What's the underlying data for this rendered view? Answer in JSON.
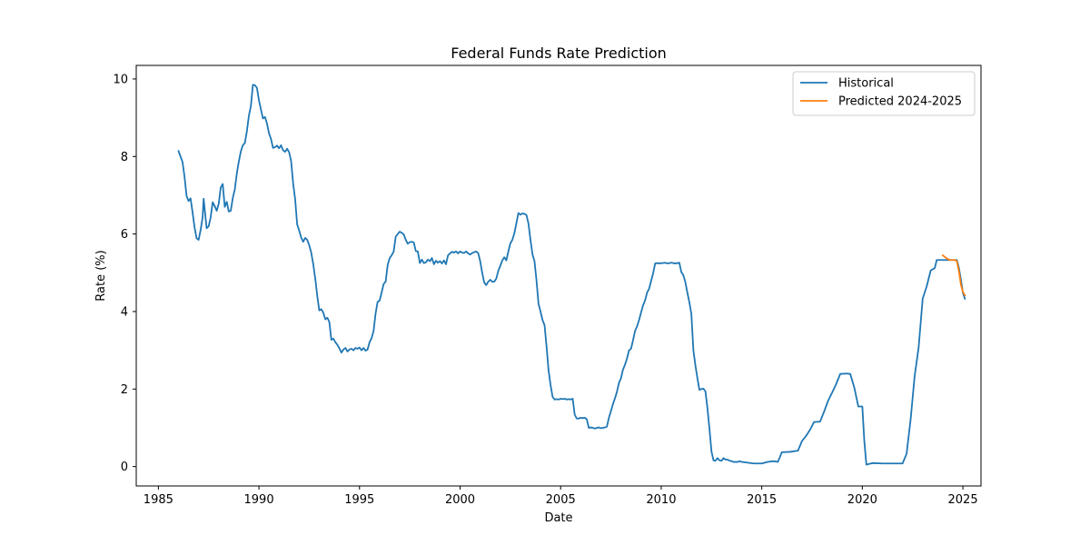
{
  "chart_data": {
    "type": "line",
    "title": "Federal Funds Rate Prediction",
    "xlabel": "Date",
    "ylabel": "Rate (%)",
    "xlim": [
      1983.9,
      2025.9
    ],
    "ylim": [
      -0.5,
      10.35
    ],
    "x_ticks": [
      1985,
      1990,
      1995,
      2000,
      2005,
      2010,
      2015,
      2020,
      2025
    ],
    "y_ticks": [
      0,
      2,
      4,
      6,
      8,
      10
    ],
    "grid": false,
    "legend_position": "top-right",
    "series": [
      {
        "name": "Historical",
        "color": "#1f77b4",
        "points": [
          [
            1986.0,
            8.14
          ],
          [
            1986.2,
            7.86
          ],
          [
            1986.3,
            7.48
          ],
          [
            1986.4,
            6.99
          ],
          [
            1986.5,
            6.85
          ],
          [
            1986.6,
            6.92
          ],
          [
            1986.7,
            6.56
          ],
          [
            1986.8,
            6.17
          ],
          [
            1986.9,
            5.89
          ],
          [
            1987.0,
            5.85
          ],
          [
            1987.1,
            6.1
          ],
          [
            1987.2,
            6.43
          ],
          [
            1987.25,
            6.91
          ],
          [
            1987.3,
            6.65
          ],
          [
            1987.4,
            6.15
          ],
          [
            1987.5,
            6.2
          ],
          [
            1987.6,
            6.43
          ],
          [
            1987.7,
            6.82
          ],
          [
            1987.8,
            6.72
          ],
          [
            1987.9,
            6.6
          ],
          [
            1988.0,
            6.78
          ],
          [
            1988.1,
            7.2
          ],
          [
            1988.2,
            7.29
          ],
          [
            1988.3,
            6.7
          ],
          [
            1988.4,
            6.83
          ],
          [
            1988.5,
            6.58
          ],
          [
            1988.6,
            6.6
          ],
          [
            1988.7,
            6.93
          ],
          [
            1988.8,
            7.15
          ],
          [
            1988.9,
            7.56
          ],
          [
            1989.0,
            7.87
          ],
          [
            1989.1,
            8.13
          ],
          [
            1989.2,
            8.29
          ],
          [
            1989.3,
            8.35
          ],
          [
            1989.4,
            8.65
          ],
          [
            1989.5,
            9.05
          ],
          [
            1989.6,
            9.3
          ],
          [
            1989.7,
            9.85
          ],
          [
            1989.8,
            9.84
          ],
          [
            1989.9,
            9.77
          ],
          [
            1990.0,
            9.45
          ],
          [
            1990.1,
            9.21
          ],
          [
            1990.2,
            8.98
          ],
          [
            1990.3,
            9.02
          ],
          [
            1990.4,
            8.85
          ],
          [
            1990.5,
            8.6
          ],
          [
            1990.6,
            8.45
          ],
          [
            1990.7,
            8.22
          ],
          [
            1990.8,
            8.24
          ],
          [
            1990.9,
            8.28
          ],
          [
            1991.0,
            8.21
          ],
          [
            1991.1,
            8.29
          ],
          [
            1991.2,
            8.16
          ],
          [
            1991.3,
            8.12
          ],
          [
            1991.4,
            8.2
          ],
          [
            1991.5,
            8.11
          ],
          [
            1991.6,
            7.88
          ],
          [
            1991.7,
            7.31
          ],
          [
            1991.8,
            6.9
          ],
          [
            1991.9,
            6.25
          ],
          [
            1992.0,
            6.09
          ],
          [
            1992.1,
            5.91
          ],
          [
            1992.2,
            5.8
          ],
          [
            1992.3,
            5.9
          ],
          [
            1992.4,
            5.85
          ],
          [
            1992.5,
            5.71
          ],
          [
            1992.6,
            5.52
          ],
          [
            1992.7,
            5.22
          ],
          [
            1992.8,
            4.85
          ],
          [
            1992.9,
            4.4
          ],
          [
            1993.0,
            4.03
          ],
          [
            1993.1,
            4.06
          ],
          [
            1993.2,
            3.97
          ],
          [
            1993.3,
            3.8
          ],
          [
            1993.4,
            3.84
          ],
          [
            1993.5,
            3.73
          ],
          [
            1993.6,
            3.27
          ],
          [
            1993.7,
            3.3
          ],
          [
            1993.8,
            3.21
          ],
          [
            1993.9,
            3.14
          ],
          [
            1994.0,
            3.05
          ],
          [
            1994.1,
            2.94
          ],
          [
            1994.2,
            3.02
          ],
          [
            1994.3,
            3.06
          ],
          [
            1994.4,
            2.97
          ],
          [
            1994.5,
            3.02
          ],
          [
            1994.6,
            3.04
          ],
          [
            1994.7,
            3.0
          ],
          [
            1994.8,
            3.06
          ],
          [
            1994.9,
            3.04
          ],
          [
            1995.0,
            3.07
          ],
          [
            1995.1,
            3.0
          ],
          [
            1995.2,
            3.06
          ],
          [
            1995.3,
            2.99
          ],
          [
            1995.4,
            3.02
          ],
          [
            1995.5,
            3.21
          ],
          [
            1995.6,
            3.31
          ],
          [
            1995.7,
            3.5
          ],
          [
            1995.8,
            3.95
          ],
          [
            1995.9,
            4.25
          ],
          [
            1996.0,
            4.28
          ],
          [
            1996.1,
            4.49
          ],
          [
            1996.2,
            4.71
          ],
          [
            1996.3,
            4.77
          ],
          [
            1996.4,
            5.2
          ],
          [
            1996.5,
            5.38
          ],
          [
            1996.6,
            5.45
          ],
          [
            1996.7,
            5.55
          ],
          [
            1996.8,
            5.93
          ],
          [
            1996.9,
            6.0
          ],
          [
            1997.0,
            6.06
          ],
          [
            1997.1,
            6.03
          ],
          [
            1997.2,
            5.99
          ],
          [
            1997.3,
            5.85
          ],
          [
            1997.4,
            5.75
          ],
          [
            1997.5,
            5.79
          ],
          [
            1997.6,
            5.8
          ],
          [
            1997.7,
            5.78
          ],
          [
            1997.8,
            5.56
          ],
          [
            1997.9,
            5.55
          ],
          [
            1998.0,
            5.25
          ],
          [
            1998.1,
            5.34
          ],
          [
            1998.2,
            5.25
          ],
          [
            1998.3,
            5.27
          ],
          [
            1998.4,
            5.34
          ],
          [
            1998.5,
            5.3
          ],
          [
            1998.6,
            5.38
          ],
          [
            1998.7,
            5.22
          ],
          [
            1998.8,
            5.31
          ],
          [
            1998.9,
            5.26
          ],
          [
            1999.0,
            5.3
          ],
          [
            1999.1,
            5.24
          ],
          [
            1999.2,
            5.32
          ],
          [
            1999.3,
            5.22
          ],
          [
            1999.4,
            5.45
          ],
          [
            1999.5,
            5.5
          ],
          [
            1999.6,
            5.54
          ],
          [
            1999.7,
            5.52
          ],
          [
            1999.8,
            5.55
          ],
          [
            1999.9,
            5.5
          ],
          [
            2000.0,
            5.55
          ],
          [
            2000.1,
            5.52
          ],
          [
            2000.2,
            5.51
          ],
          [
            2000.3,
            5.55
          ],
          [
            2000.4,
            5.5
          ],
          [
            2000.5,
            5.47
          ],
          [
            2000.6,
            5.51
          ],
          [
            2000.7,
            5.53
          ],
          [
            2000.8,
            5.55
          ],
          [
            2000.9,
            5.51
          ],
          [
            2001.0,
            5.3
          ],
          [
            2001.1,
            5.0
          ],
          [
            2001.2,
            4.75
          ],
          [
            2001.3,
            4.68
          ],
          [
            2001.4,
            4.77
          ],
          [
            2001.5,
            4.82
          ],
          [
            2001.6,
            4.77
          ],
          [
            2001.7,
            4.77
          ],
          [
            2001.8,
            4.85
          ],
          [
            2001.9,
            5.05
          ],
          [
            2002.0,
            5.18
          ],
          [
            2002.1,
            5.32
          ],
          [
            2002.2,
            5.4
          ],
          [
            2002.3,
            5.32
          ],
          [
            2002.4,
            5.55
          ],
          [
            2002.5,
            5.76
          ],
          [
            2002.6,
            5.85
          ],
          [
            2002.7,
            6.02
          ],
          [
            2002.8,
            6.28
          ],
          [
            2002.9,
            6.54
          ],
          [
            2003.0,
            6.5
          ],
          [
            2003.1,
            6.53
          ],
          [
            2003.2,
            6.52
          ],
          [
            2003.3,
            6.49
          ],
          [
            2003.4,
            6.27
          ],
          [
            2003.5,
            5.85
          ],
          [
            2003.6,
            5.48
          ],
          [
            2003.7,
            5.3
          ],
          [
            2003.8,
            4.8
          ],
          [
            2003.9,
            4.2
          ],
          [
            2004.0,
            4.0
          ],
          [
            2004.1,
            3.78
          ],
          [
            2004.2,
            3.65
          ],
          [
            2004.3,
            3.1
          ],
          [
            2004.4,
            2.48
          ],
          [
            2004.5,
            2.1
          ],
          [
            2004.6,
            1.8
          ],
          [
            2004.7,
            1.73
          ],
          [
            2004.8,
            1.74
          ],
          [
            2004.9,
            1.73
          ],
          [
            2005.0,
            1.75
          ],
          [
            2005.1,
            1.74
          ],
          [
            2005.2,
            1.75
          ],
          [
            2005.3,
            1.73
          ],
          [
            2005.4,
            1.74
          ],
          [
            2005.5,
            1.73
          ],
          [
            2005.6,
            1.75
          ],
          [
            2005.7,
            1.34
          ],
          [
            2005.8,
            1.24
          ],
          [
            2005.9,
            1.24
          ],
          [
            2006.0,
            1.26
          ],
          [
            2006.1,
            1.25
          ],
          [
            2006.2,
            1.26
          ],
          [
            2006.3,
            1.22
          ],
          [
            2006.4,
            1.0
          ],
          [
            2006.5,
            1.01
          ],
          [
            2006.6,
            1.0
          ],
          [
            2006.7,
            0.98
          ],
          [
            2006.8,
            1.0
          ],
          [
            2006.9,
            1.01
          ],
          [
            2007.0,
            0.99
          ],
          [
            2007.1,
            1.0
          ],
          [
            2007.2,
            1.01
          ],
          [
            2007.3,
            1.03
          ],
          [
            2007.4,
            1.26
          ],
          [
            2007.5,
            1.43
          ],
          [
            2007.6,
            1.61
          ],
          [
            2007.7,
            1.76
          ],
          [
            2007.8,
            1.93
          ],
          [
            2007.9,
            2.16
          ],
          [
            2008.0,
            2.28
          ],
          [
            2008.1,
            2.5
          ],
          [
            2008.2,
            2.63
          ],
          [
            2008.3,
            2.79
          ],
          [
            2008.4,
            3.0
          ],
          [
            2008.5,
            3.04
          ],
          [
            2008.6,
            3.26
          ],
          [
            2008.7,
            3.5
          ],
          [
            2008.8,
            3.62
          ],
          [
            2008.9,
            3.78
          ],
          [
            2009.0,
            3.98
          ],
          [
            2009.1,
            4.16
          ],
          [
            2009.2,
            4.29
          ],
          [
            2009.3,
            4.49
          ],
          [
            2009.4,
            4.59
          ],
          [
            2009.5,
            4.79
          ],
          [
            2009.6,
            4.99
          ],
          [
            2009.7,
            5.24
          ],
          [
            2009.8,
            5.25
          ],
          [
            2009.9,
            5.24
          ],
          [
            2010.0,
            5.25
          ],
          [
            2010.1,
            5.25
          ],
          [
            2010.2,
            5.26
          ],
          [
            2010.3,
            5.24
          ],
          [
            2010.4,
            5.25
          ],
          [
            2010.5,
            5.26
          ],
          [
            2010.6,
            5.25
          ],
          [
            2010.7,
            5.24
          ],
          [
            2010.8,
            5.25
          ],
          [
            2010.9,
            5.26
          ],
          [
            2011.0,
            5.02
          ],
          [
            2011.1,
            4.94
          ],
          [
            2011.2,
            4.76
          ],
          [
            2011.3,
            4.49
          ],
          [
            2011.4,
            4.24
          ],
          [
            2011.5,
            3.94
          ],
          [
            2011.6,
            3.0
          ],
          [
            2011.7,
            2.61
          ],
          [
            2011.8,
            2.28
          ],
          [
            2011.9,
            1.98
          ],
          [
            2012.0,
            2.0
          ],
          [
            2012.1,
            2.01
          ],
          [
            2012.2,
            1.94
          ],
          [
            2012.3,
            1.5
          ],
          [
            2012.4,
            0.97
          ],
          [
            2012.5,
            0.39
          ],
          [
            2012.6,
            0.16
          ],
          [
            2012.7,
            0.15
          ],
          [
            2012.8,
            0.22
          ],
          [
            2012.9,
            0.16
          ],
          [
            2013.0,
            0.15
          ],
          [
            2013.1,
            0.22
          ],
          [
            2013.2,
            0.18
          ],
          [
            2013.3,
            0.18
          ],
          [
            2013.4,
            0.15
          ],
          [
            2013.5,
            0.14
          ],
          [
            2013.6,
            0.12
          ],
          [
            2013.7,
            0.12
          ],
          [
            2013.8,
            0.12
          ],
          [
            2013.9,
            0.14
          ]
        ]
      },
      {
        "name": "Predicted 2024-2025",
        "color": "#ff7f0e",
        "points": [
          [
            2024.0,
            5.45
          ],
          [
            2024.1,
            5.41
          ],
          [
            2024.2,
            5.37
          ],
          [
            2024.3,
            5.34
          ],
          [
            2024.4,
            5.33
          ],
          [
            2024.5,
            5.33
          ],
          [
            2024.6,
            5.33
          ],
          [
            2024.7,
            5.3
          ],
          [
            2024.8,
            5.05
          ],
          [
            2024.9,
            4.7
          ],
          [
            2025.0,
            4.5
          ],
          [
            2025.1,
            4.42
          ]
        ]
      }
    ]
  }
}
